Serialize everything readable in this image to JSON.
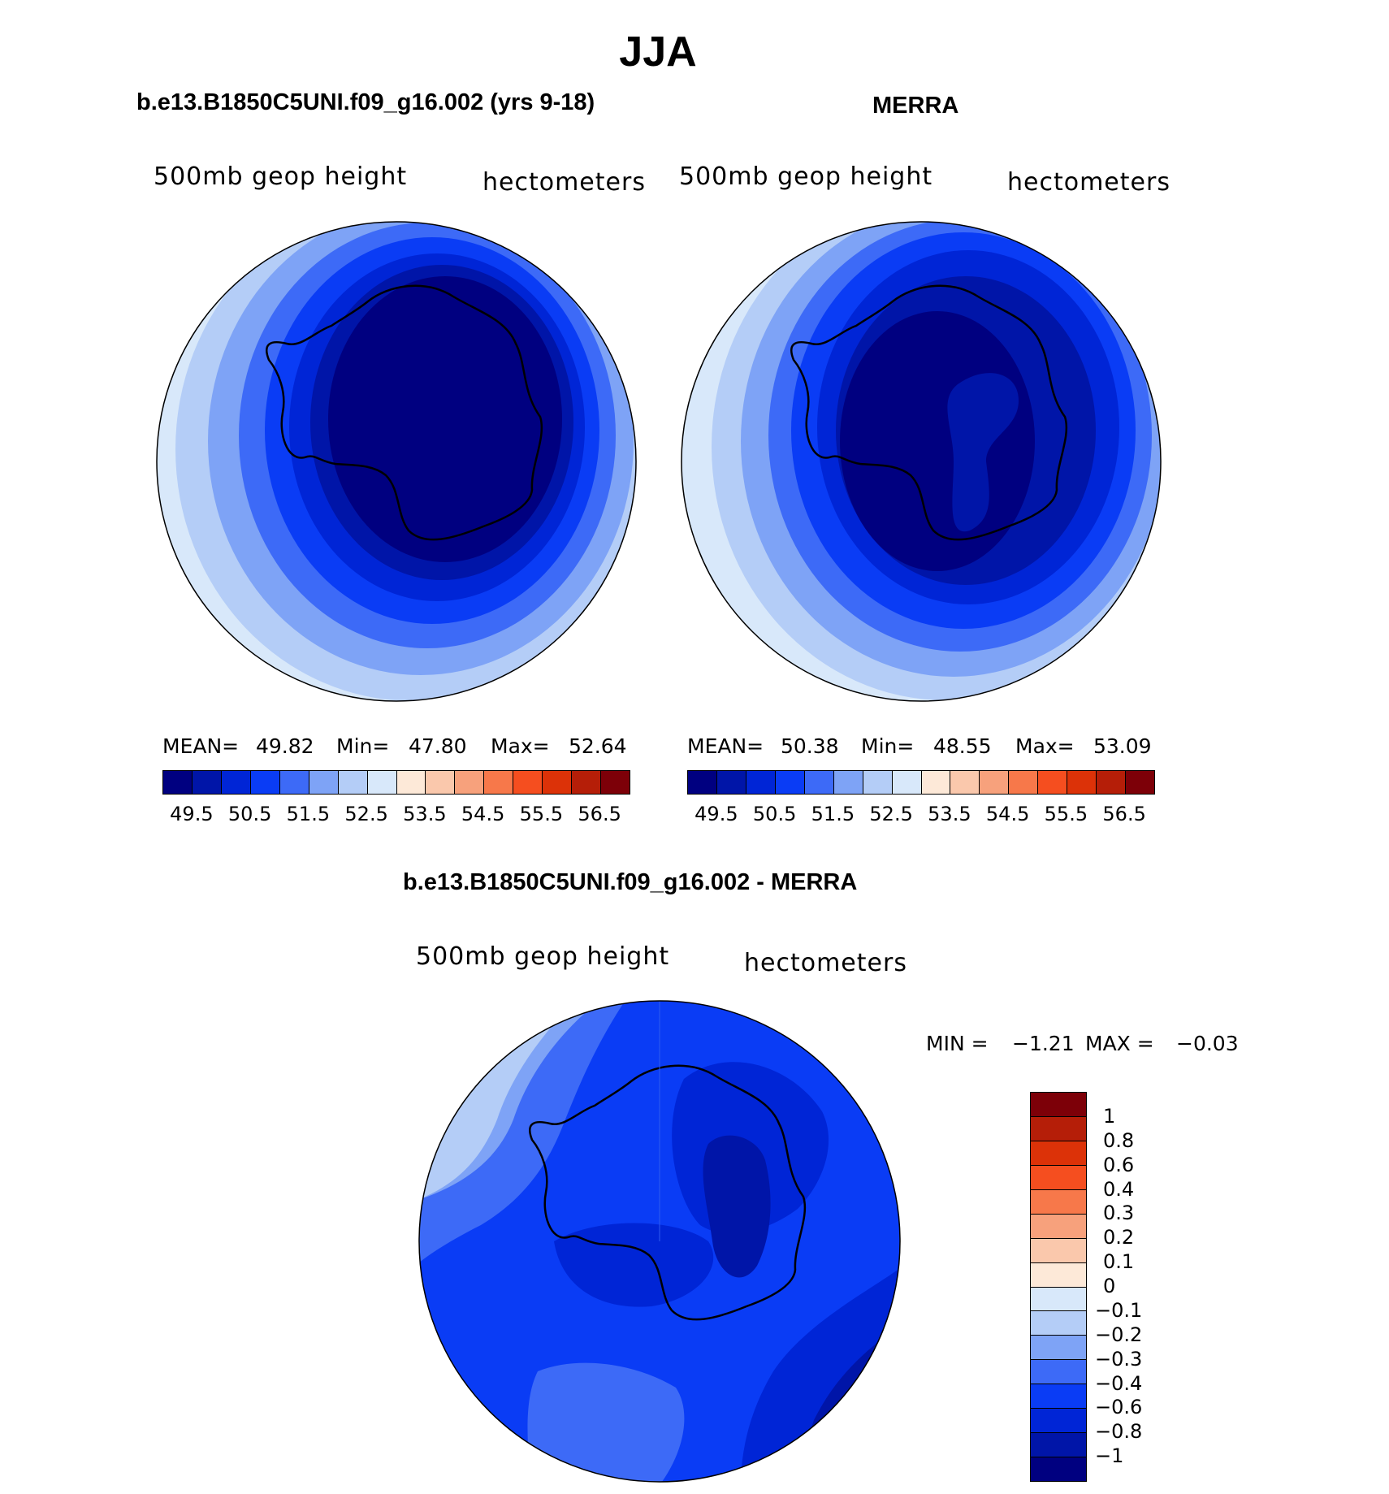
{
  "figure": {
    "title": "JJA",
    "panel_model": {
      "heading": "b.e13.B1850C5UNI.f09_g16.002 (yrs 9-18)",
      "field_label": "500mb geop height",
      "units_label": "hectometers",
      "stats": {
        "mean_label": "MEAN=",
        "mean": "49.82",
        "min_label": "Min=",
        "min": "47.80",
        "max_label": "Max=",
        "max": "52.64"
      }
    },
    "panel_obs": {
      "heading": "MERRA",
      "field_label": "500mb geop height",
      "units_label": "hectometers",
      "stats": {
        "mean_label": "MEAN=",
        "mean": "50.38",
        "min_label": "Min=",
        "min": "48.55",
        "max_label": "Max=",
        "max": "53.09"
      }
    },
    "panel_diff": {
      "heading": "b.e13.B1850C5UNI.f09_g16.002 - MERRA",
      "field_label": "500mb geop height",
      "units_label": "hectometers",
      "stats": {
        "min_label": "MIN =",
        "min": "−1.21",
        "max_label": "MAX =",
        "max": "−0.03"
      }
    }
  },
  "colorbar_abs": {
    "colors": [
      "#000080",
      "#0015a8",
      "#0025d6",
      "#0a3cf5",
      "#3d6af7",
      "#7ea3f6",
      "#b4cdf7",
      "#d8e8fa",
      "#fde9d8",
      "#fac8ac",
      "#f7a17c",
      "#f7784a",
      "#f54e1f",
      "#dc3208",
      "#b51e08",
      "#7d0008"
    ],
    "tick_labels": [
      "49.5",
      "50.5",
      "51.5",
      "52.5",
      "53.5",
      "54.5",
      "55.5",
      "56.5"
    ]
  },
  "colorbar_diff": {
    "colors": [
      "#7d0008",
      "#b51e08",
      "#dc3208",
      "#f54e1f",
      "#f7784a",
      "#f7a17c",
      "#fac8ac",
      "#fde9d8",
      "#d8e8fa",
      "#b4cdf7",
      "#7ea3f6",
      "#3d6af7",
      "#0a3cf5",
      "#0025d6",
      "#0015a8",
      "#000080"
    ],
    "tick_labels": [
      "1",
      "0.8",
      "0.6",
      "0.4",
      "0.3",
      "0.2",
      "0.1",
      "0",
      "−0.1",
      "−0.2",
      "−0.3",
      "−0.4",
      "−0.6",
      "−0.8",
      "−1"
    ]
  }
}
